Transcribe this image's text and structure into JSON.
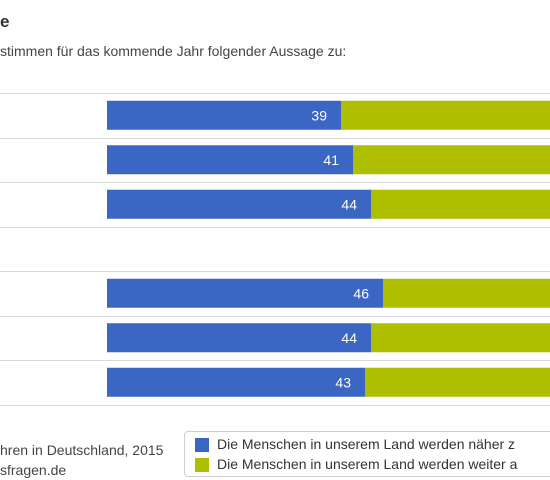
{
  "title": "e",
  "subtitle": "stimmen für das kommende Jahr folgender Aussage zu:",
  "source": [
    "hren in Deutschland, 2015",
    "sfragen.de"
  ],
  "colors": {
    "series_a": "#3b66c4",
    "series_b": "#adbf00",
    "grid": "#d9d9d9"
  },
  "chart_data": {
    "type": "bar",
    "orientation": "horizontal",
    "stacked": true,
    "categories": [
      "",
      "",
      "",
      "",
      "",
      "",
      ""
    ],
    "series": [
      {
        "name": "Die Menschen in unserem Land werden näher z",
        "values": [
          39,
          41,
          44,
          null,
          46,
          44,
          43
        ]
      },
      {
        "name": "Die Menschen in unserem Land werden weiter a",
        "values": [
          61,
          59,
          56,
          null,
          54,
          56,
          57
        ]
      }
    ],
    "data_labels": [
      "39",
      "41",
      "44",
      "",
      "46",
      "44",
      "43"
    ],
    "xlim": [
      0,
      100
    ],
    "grid": true,
    "legend_position": "bottom"
  }
}
